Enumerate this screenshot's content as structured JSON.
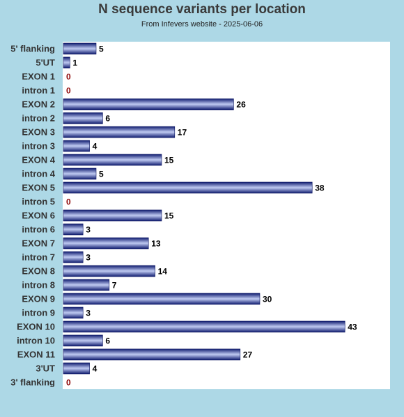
{
  "chart_data": {
    "type": "bar",
    "orientation": "horizontal",
    "title": "N sequence variants per location",
    "subtitle": "From Infevers website - 2025-06-06",
    "categories": [
      "5' flanking",
      "5'UT",
      "EXON 1",
      "intron 1",
      "EXON 2",
      "intron 2",
      "EXON 3",
      "intron 3",
      "EXON 4",
      "intron 4",
      "EXON 5",
      "intron 5",
      "EXON 6",
      "intron 6",
      "EXON 7",
      "intron 7",
      "EXON 8",
      "intron 8",
      "EXON 9",
      "intron 9",
      "EXON 10",
      "intron 10",
      "EXON 11",
      "3'UT",
      "3' flanking"
    ],
    "values": [
      5,
      1,
      0,
      0,
      26,
      6,
      17,
      4,
      15,
      5,
      38,
      0,
      15,
      3,
      13,
      3,
      14,
      7,
      30,
      3,
      43,
      6,
      27,
      4,
      0
    ],
    "xlim": [
      0,
      50
    ],
    "grid": false,
    "legend": "none"
  },
  "colors": {
    "background": "#add8e6",
    "plot_background": "#ffffff",
    "bar_dark": "#1c2a8c",
    "bar_light": "#b8c4f0",
    "zero_label": "#8b0000"
  }
}
